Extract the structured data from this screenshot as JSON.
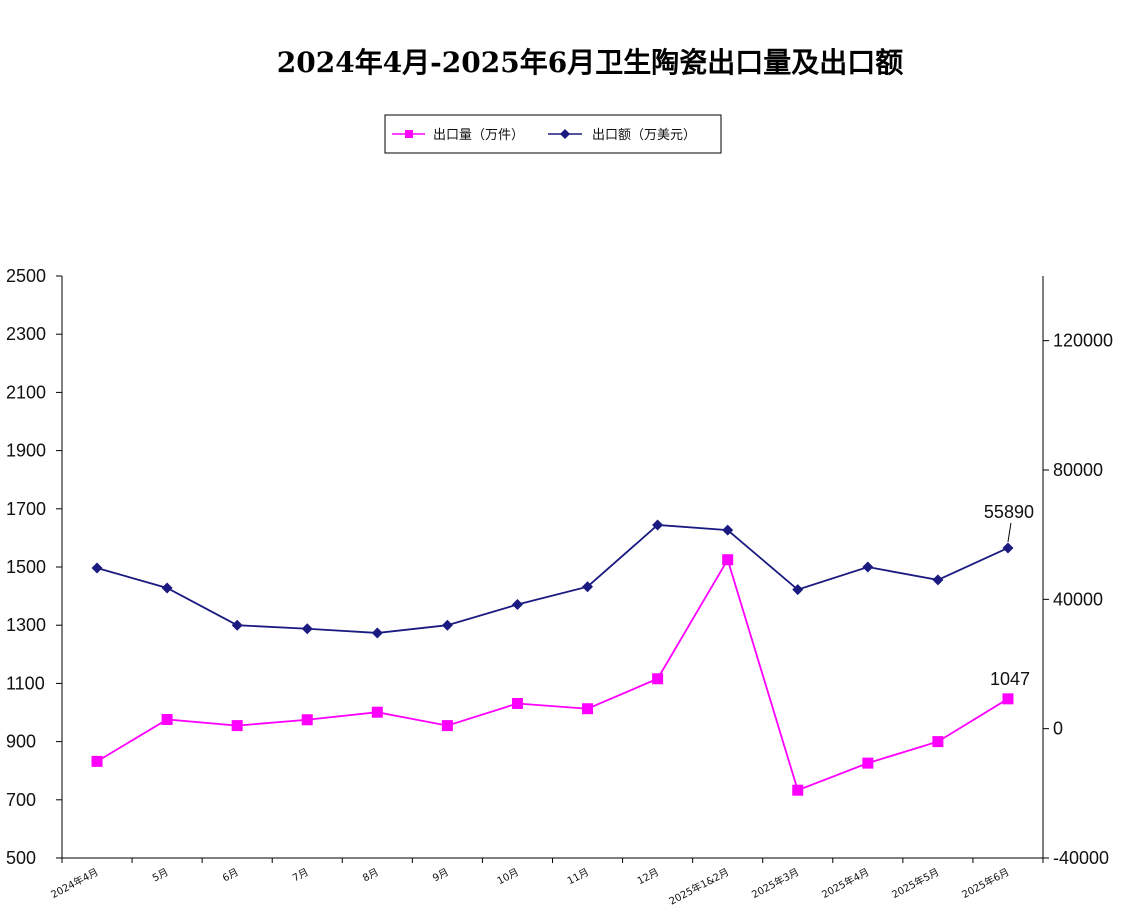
{
  "chart_data": {
    "type": "line",
    "title": "2024年4月-2025年6月卫生陶瓷出口量及出口额",
    "categories": [
      "2024年4月",
      "5月",
      "6月",
      "7月",
      "8月",
      "9月",
      "10月",
      "11月",
      "12月",
      "2025年1&2月",
      "2025年3月",
      "2025年4月",
      "2025年5月",
      "2025年6月"
    ],
    "series": [
      {
        "name": "出口量（万件）",
        "axis": "left",
        "color": "#ff00ff",
        "marker": "square",
        "values": [
          832,
          976,
          955,
          975,
          1001,
          955,
          1031,
          1013,
          1116,
          1525,
          733,
          826,
          900,
          1047
        ]
      },
      {
        "name": "出口额（万美元）",
        "axis": "right",
        "color": "#1a1a80",
        "marker": "diamond",
        "values": [
          49700,
          43500,
          32000,
          30900,
          29600,
          32000,
          38400,
          43900,
          63000,
          61400,
          43000,
          50000,
          46000,
          55890
        ]
      }
    ],
    "y_left": {
      "ylim": [
        500,
        2500
      ],
      "ticks": [
        "500",
        "700",
        "900",
        "1100",
        "1300",
        "1500",
        "1700",
        "1900",
        "2100",
        "2300",
        "2500"
      ]
    },
    "y_right": {
      "ylim": [
        -40000,
        140000
      ],
      "ticks": [
        "-40000",
        "0",
        "40000",
        "80000",
        "120000"
      ]
    },
    "data_labels": {
      "volume_last": "1047",
      "value_last": "55890"
    },
    "legend_position": "top-center",
    "grid": false
  }
}
